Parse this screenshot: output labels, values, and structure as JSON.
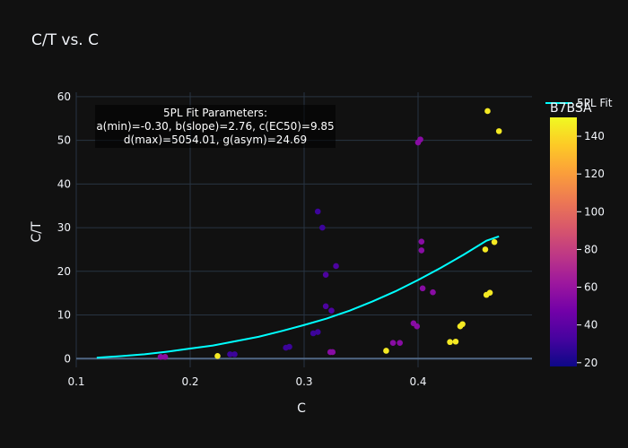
{
  "chart_data": {
    "type": "scatter",
    "title": "C/T vs. C",
    "xlabel": "C",
    "ylabel": "C/T",
    "xlim": [
      0.1,
      0.5
    ],
    "ylim": [
      -2,
      61
    ],
    "xticks": [
      0.1,
      0.2,
      0.3,
      0.4
    ],
    "yticks": [
      0,
      10,
      20,
      30,
      40,
      50,
      60
    ],
    "grid": true,
    "colorbar": {
      "title": "B7BSA",
      "range": [
        18,
        150
      ],
      "ticks": [
        20,
        40,
        60,
        80,
        100,
        120,
        140
      ],
      "colorscale": [
        "#0d0887",
        "#46039f",
        "#7201a8",
        "#9c179e",
        "#bd3786",
        "#d8576b",
        "#ed7953",
        "#fb9f3a",
        "#fdca26",
        "#f0f921"
      ]
    },
    "series": [
      {
        "type": "scatter",
        "name": "",
        "points": [
          {
            "x": 0.174,
            "y": 0.4,
            "c": 55
          },
          {
            "x": 0.178,
            "y": 0.4,
            "c": 55
          },
          {
            "x": 0.224,
            "y": 0.6,
            "c": 145
          },
          {
            "x": 0.235,
            "y": 1.0,
            "c": 30
          },
          {
            "x": 0.239,
            "y": 1.0,
            "c": 30
          },
          {
            "x": 0.284,
            "y": 2.5,
            "c": 30
          },
          {
            "x": 0.287,
            "y": 2.7,
            "c": 30
          },
          {
            "x": 0.308,
            "y": 5.8,
            "c": 30
          },
          {
            "x": 0.312,
            "y": 6.1,
            "c": 30
          },
          {
            "x": 0.312,
            "y": 33.7,
            "c": 30
          },
          {
            "x": 0.316,
            "y": 30.0,
            "c": 30
          },
          {
            "x": 0.319,
            "y": 19.2,
            "c": 35
          },
          {
            "x": 0.319,
            "y": 12.0,
            "c": 35
          },
          {
            "x": 0.323,
            "y": 1.5,
            "c": 55
          },
          {
            "x": 0.325,
            "y": 1.5,
            "c": 55
          },
          {
            "x": 0.324,
            "y": 11.0,
            "c": 35
          },
          {
            "x": 0.328,
            "y": 21.2,
            "c": 35
          },
          {
            "x": 0.372,
            "y": 1.8,
            "c": 145
          },
          {
            "x": 0.378,
            "y": 3.6,
            "c": 55
          },
          {
            "x": 0.384,
            "y": 3.6,
            "c": 55
          },
          {
            "x": 0.396,
            "y": 8.1,
            "c": 55
          },
          {
            "x": 0.399,
            "y": 7.4,
            "c": 55
          },
          {
            "x": 0.4,
            "y": 49.5,
            "c": 55
          },
          {
            "x": 0.402,
            "y": 50.2,
            "c": 55
          },
          {
            "x": 0.403,
            "y": 26.8,
            "c": 55
          },
          {
            "x": 0.403,
            "y": 24.8,
            "c": 55
          },
          {
            "x": 0.404,
            "y": 16.1,
            "c": 55
          },
          {
            "x": 0.413,
            "y": 15.2,
            "c": 55
          },
          {
            "x": 0.428,
            "y": 3.8,
            "c": 145
          },
          {
            "x": 0.433,
            "y": 3.9,
            "c": 145
          },
          {
            "x": 0.437,
            "y": 7.4,
            "c": 145
          },
          {
            "x": 0.439,
            "y": 7.9,
            "c": 145
          },
          {
            "x": 0.459,
            "y": 25.0,
            "c": 145
          },
          {
            "x": 0.46,
            "y": 14.6,
            "c": 145
          },
          {
            "x": 0.461,
            "y": 56.7,
            "c": 145
          },
          {
            "x": 0.463,
            "y": 15.1,
            "c": 145
          },
          {
            "x": 0.467,
            "y": 26.7,
            "c": 145
          },
          {
            "x": 0.471,
            "y": 52.1,
            "c": 145
          }
        ]
      },
      {
        "type": "line",
        "name": "5PL Fit",
        "color": "#00ffff",
        "x": [
          0.118,
          0.14,
          0.16,
          0.18,
          0.2,
          0.22,
          0.24,
          0.26,
          0.28,
          0.3,
          0.32,
          0.34,
          0.36,
          0.38,
          0.4,
          0.42,
          0.44,
          0.46,
          0.471
        ],
        "y": [
          0.2,
          0.6,
          1.0,
          1.6,
          2.3,
          3.0,
          4.0,
          5.0,
          6.3,
          7.7,
          9.2,
          11.0,
          13.1,
          15.4,
          18.0,
          20.8,
          23.8,
          27.0,
          28.0
        ]
      }
    ],
    "annotation": {
      "lines": [
        "5PL Fit Parameters:",
        "a(min)=-0.30, b(slope)=2.76, c(EC50)=9.85",
        "d(max)=5054.01, g(asym)=24.69"
      ]
    },
    "legend": {
      "entries": [
        "5PL Fit"
      ],
      "placement": "top-right"
    }
  }
}
